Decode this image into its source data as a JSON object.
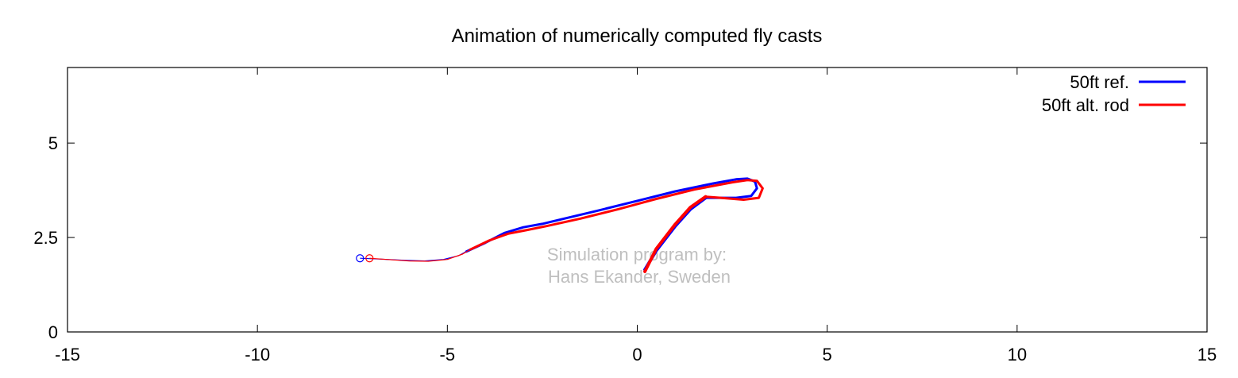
{
  "chart_data": {
    "type": "line",
    "title": "Animation of numerically computed fly casts",
    "xlabel": "",
    "ylabel": "",
    "xlim": [
      -15,
      15
    ],
    "ylim": [
      0,
      7
    ],
    "x_ticks": [
      -15,
      -10,
      -5,
      0,
      5,
      10,
      15
    ],
    "y_ticks": [
      0,
      2.5,
      5
    ],
    "y_tick_labels": [
      "0",
      "2.5",
      "5"
    ],
    "grid": false,
    "legend_position": "top-right",
    "annotation": {
      "line1": "Simulation program by:",
      "line2": "Hans Ekander, Sweden"
    },
    "series": [
      {
        "name": "50ft ref.",
        "color": "#0000ff",
        "tip_marker": [
          -7.3,
          1.95
        ],
        "leader": [
          [
            -7.3,
            1.95
          ],
          [
            -6.8,
            1.93
          ],
          [
            -6.2,
            1.9
          ],
          [
            -5.6,
            1.88
          ],
          [
            -5.1,
            1.92
          ],
          [
            -4.7,
            2.02
          ],
          [
            -4.5,
            2.13
          ]
        ],
        "line": [
          [
            -4.5,
            2.13
          ],
          [
            -4.0,
            2.36
          ],
          [
            -3.5,
            2.62
          ],
          [
            -3.0,
            2.77
          ],
          [
            -2.5,
            2.86
          ],
          [
            -2.0,
            2.98
          ],
          [
            -1.0,
            3.22
          ],
          [
            0.0,
            3.47
          ],
          [
            1.0,
            3.72
          ],
          [
            2.0,
            3.93
          ],
          [
            2.6,
            4.04
          ],
          [
            2.9,
            4.06
          ],
          [
            3.1,
            3.98
          ],
          [
            3.15,
            3.8
          ],
          [
            3.0,
            3.6
          ],
          [
            2.6,
            3.55
          ],
          [
            2.0,
            3.55
          ],
          [
            1.8,
            3.55
          ]
        ],
        "rod": [
          [
            1.8,
            3.55
          ],
          [
            1.4,
            3.25
          ],
          [
            1.0,
            2.8
          ],
          [
            0.5,
            2.15
          ],
          [
            0.2,
            1.65
          ]
        ]
      },
      {
        "name": "50ft alt. rod",
        "color": "#ff0000",
        "tip_marker": [
          -7.05,
          1.95
        ],
        "leader": [
          [
            -7.05,
            1.95
          ],
          [
            -6.6,
            1.92
          ],
          [
            -6.0,
            1.88
          ],
          [
            -5.5,
            1.87
          ],
          [
            -5.0,
            1.92
          ],
          [
            -4.6,
            2.06
          ],
          [
            -4.4,
            2.18
          ]
        ],
        "line": [
          [
            -4.4,
            2.18
          ],
          [
            -3.9,
            2.42
          ],
          [
            -3.4,
            2.6
          ],
          [
            -2.9,
            2.7
          ],
          [
            -2.4,
            2.8
          ],
          [
            -1.5,
            3.0
          ],
          [
            -0.5,
            3.25
          ],
          [
            0.5,
            3.52
          ],
          [
            1.5,
            3.77
          ],
          [
            2.5,
            3.96
          ],
          [
            2.9,
            4.02
          ],
          [
            3.15,
            4.0
          ],
          [
            3.3,
            3.8
          ],
          [
            3.2,
            3.55
          ],
          [
            2.8,
            3.5
          ],
          [
            2.2,
            3.55
          ],
          [
            1.8,
            3.58
          ]
        ],
        "rod": [
          [
            1.8,
            3.58
          ],
          [
            1.4,
            3.3
          ],
          [
            1.0,
            2.85
          ],
          [
            0.5,
            2.2
          ],
          [
            0.2,
            1.6
          ]
        ]
      }
    ]
  }
}
